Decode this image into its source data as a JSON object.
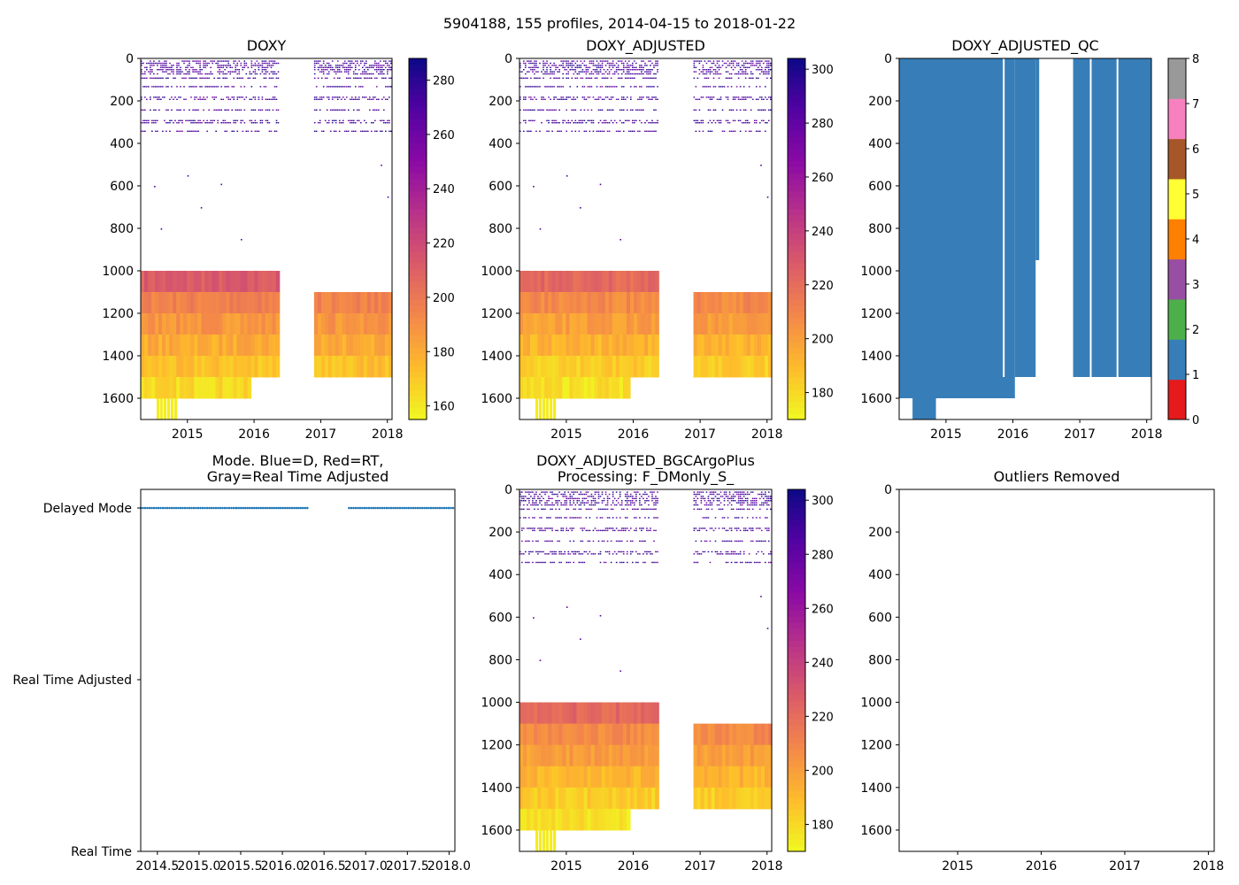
{
  "figure": {
    "suptitle": "5904188, 155 profiles, 2014-04-15 to 2018-01-22"
  },
  "chart_data": [
    {
      "id": "doxy",
      "type": "heatmap",
      "title": "DOXY",
      "x_ticks": [
        "2015",
        "2016",
        "2017",
        "2018"
      ],
      "xlim": [
        2014.3,
        2018.07
      ],
      "ylim": [
        1700,
        0
      ],
      "y_ticks": [
        "0",
        "200",
        "400",
        "600",
        "800",
        "1000",
        "1200",
        "1400",
        "1600"
      ],
      "colormap": "plasma_r",
      "colorbar": {
        "min": 155,
        "max": 288,
        "ticks": [
          "160",
          "180",
          "200",
          "220",
          "240",
          "260",
          "280"
        ]
      },
      "data_gaps": [
        [
          2016.4,
          2016.9
        ]
      ],
      "upper_sparse_rows_dbar": [
        10,
        20,
        30,
        40,
        50,
        60,
        70,
        90,
        130,
        180,
        190,
        240,
        290,
        300,
        340
      ],
      "bands": [
        {
          "depth_from": 1000,
          "depth_to": 1100,
          "value": 212
        },
        {
          "depth_from": 1100,
          "depth_to": 1200,
          "value": 196
        },
        {
          "depth_from": 1200,
          "depth_to": 1300,
          "value": 188
        },
        {
          "depth_from": 1300,
          "depth_to": 1400,
          "value": 180
        },
        {
          "depth_from": 1400,
          "depth_to": 1500,
          "value": 172
        },
        {
          "depth_from": 1500,
          "depth_to": 1600,
          "value": 165
        }
      ]
    },
    {
      "id": "doxy-adjusted",
      "type": "heatmap",
      "title": "DOXY_ADJUSTED",
      "x_ticks": [
        "2015",
        "2016",
        "2017",
        "2018"
      ],
      "xlim": [
        2014.3,
        2018.07
      ],
      "ylim": [
        1700,
        0
      ],
      "y_ticks": [
        "0",
        "200",
        "400",
        "600",
        "800",
        "1000",
        "1200",
        "1400",
        "1600"
      ],
      "colormap": "plasma_r",
      "colorbar": {
        "min": 170,
        "max": 304,
        "ticks": [
          "180",
          "200",
          "220",
          "240",
          "260",
          "280",
          "300"
        ]
      },
      "data_gaps": [
        [
          2016.4,
          2016.9
        ]
      ],
      "bands": [
        {
          "depth_from": 1000,
          "depth_to": 1100,
          "value": 222
        },
        {
          "depth_from": 1100,
          "depth_to": 1200,
          "value": 208
        },
        {
          "depth_from": 1200,
          "depth_to": 1300,
          "value": 200
        },
        {
          "depth_from": 1300,
          "depth_to": 1400,
          "value": 192
        },
        {
          "depth_from": 1400,
          "depth_to": 1500,
          "value": 184
        },
        {
          "depth_from": 1500,
          "depth_to": 1600,
          "value": 178
        }
      ]
    },
    {
      "id": "doxy-adjusted-qc",
      "type": "heatmap",
      "title": "DOXY_ADJUSTED_QC",
      "x_ticks": [
        "2015",
        "2016",
        "2017",
        "2018"
      ],
      "xlim": [
        2014.3,
        2018.07
      ],
      "ylim": [
        1700,
        0
      ],
      "y_ticks": [
        "0",
        "200",
        "400",
        "600",
        "800",
        "1000",
        "1200",
        "1400",
        "1600"
      ],
      "dominant_flag": 1,
      "colorbar": {
        "min": 0,
        "max": 8,
        "ticks": [
          "0",
          "1",
          "2",
          "3",
          "4",
          "5",
          "6",
          "7",
          "8"
        ],
        "colors": [
          "#e41a1c",
          "#377eb8",
          "#4daf4a",
          "#984ea3",
          "#ff7f00",
          "#ffff33",
          "#a65628",
          "#f781bf",
          "#999999"
        ]
      }
    },
    {
      "id": "mode",
      "type": "scatter",
      "title_line1": "Mode. Blue=D, Red=RT,",
      "title_line2": "Gray=Real Time Adjusted",
      "x_ticks": [
        "2014.5",
        "2015.0",
        "2015.5",
        "2016.0",
        "2016.5",
        "2017.0",
        "2017.5",
        "2018.0"
      ],
      "xlim": [
        2014.3,
        2018.07
      ],
      "y_categories": [
        "Delayed Mode",
        "Real Time Adjusted",
        "Real Time"
      ],
      "series": [
        {
          "name": "Delayed Mode",
          "color": "#1f77b4",
          "segments": [
            [
              2014.3,
              2015.45
            ],
            [
              2015.45,
              2016.3
            ],
            [
              2016.8,
              2018.07
            ]
          ]
        }
      ]
    },
    {
      "id": "doxy-adjusted-bgc",
      "type": "heatmap",
      "title_line1": "DOXY_ADJUSTED_BGCArgoPlus",
      "title_line2": "Processing: F_DMonly_S_",
      "x_ticks": [
        "2015",
        "2016",
        "2017",
        "2018"
      ],
      "xlim": [
        2014.3,
        2018.07
      ],
      "ylim": [
        1700,
        0
      ],
      "y_ticks": [
        "0",
        "200",
        "400",
        "600",
        "800",
        "1000",
        "1200",
        "1400",
        "1600"
      ],
      "colormap": "plasma_r",
      "colorbar": {
        "min": 170,
        "max": 304,
        "ticks": [
          "180",
          "200",
          "220",
          "240",
          "260",
          "280",
          "300"
        ]
      },
      "data_gaps": [
        [
          2016.4,
          2016.9
        ]
      ],
      "bands": [
        {
          "depth_from": 1000,
          "depth_to": 1100,
          "value": 222
        },
        {
          "depth_from": 1100,
          "depth_to": 1200,
          "value": 208
        },
        {
          "depth_from": 1200,
          "depth_to": 1300,
          "value": 200
        },
        {
          "depth_from": 1300,
          "depth_to": 1400,
          "value": 192
        },
        {
          "depth_from": 1400,
          "depth_to": 1500,
          "value": 184
        },
        {
          "depth_from": 1500,
          "depth_to": 1600,
          "value": 178
        }
      ]
    },
    {
      "id": "outliers-removed",
      "type": "scatter",
      "title": "Outliers Removed",
      "x_ticks": [
        "2015",
        "2016",
        "2017",
        "2018"
      ],
      "xlim": [
        2014.3,
        2018.07
      ],
      "ylim": [
        1700,
        0
      ],
      "y_ticks": [
        "0",
        "200",
        "400",
        "600",
        "800",
        "1000",
        "1200",
        "1400",
        "1600"
      ],
      "series": []
    }
  ]
}
